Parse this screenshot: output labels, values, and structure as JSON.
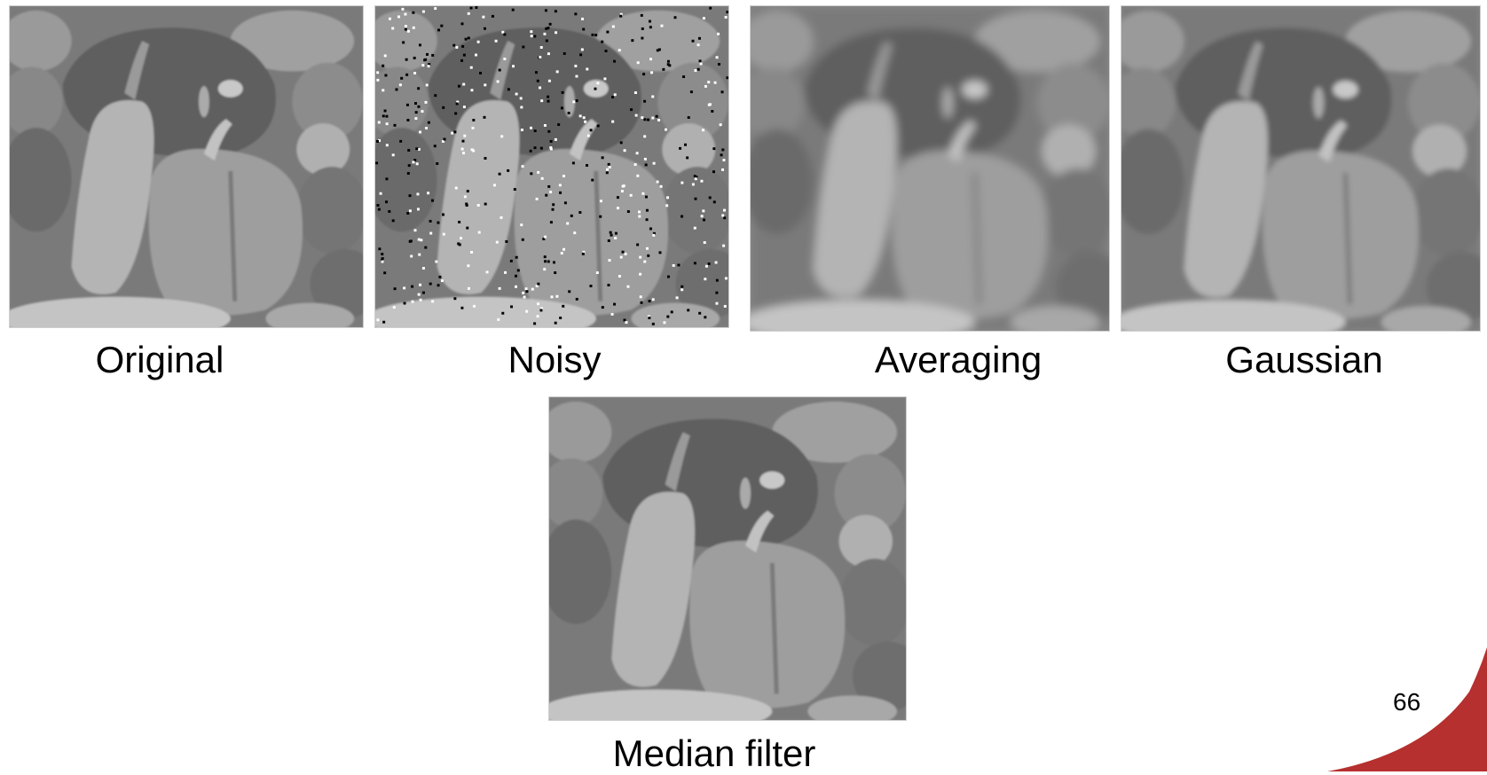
{
  "captions": {
    "original": "Original",
    "noisy": "Noisy",
    "averaging": "Averaging",
    "gaussian": "Gaussian",
    "median": "Median filter"
  },
  "page_number": "66",
  "colors": {
    "accent": "#b5302e"
  }
}
